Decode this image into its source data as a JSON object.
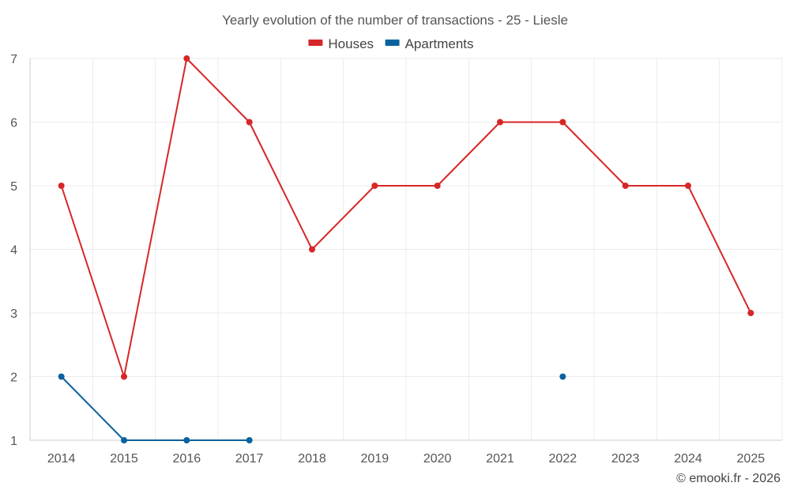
{
  "chart_data": {
    "type": "line",
    "title": "Yearly evolution of the number of transactions - 25 - Liesle",
    "categories": [
      "2014",
      "2015",
      "2016",
      "2017",
      "2018",
      "2019",
      "2020",
      "2021",
      "2022",
      "2023",
      "2024",
      "2025"
    ],
    "series": [
      {
        "name": "Houses",
        "color": "#d62728",
        "values": [
          5,
          2,
          7,
          6,
          4,
          5,
          5,
          6,
          6,
          5,
          5,
          3
        ]
      },
      {
        "name": "Apartments",
        "color": "#0a629e",
        "values": [
          2,
          1,
          1,
          1,
          null,
          null,
          null,
          null,
          2,
          null,
          null,
          null
        ]
      }
    ],
    "yticks": [
      1,
      2,
      3,
      4,
      5,
      6,
      7
    ],
    "ylim": [
      1,
      7
    ],
    "xlabel": "",
    "ylabel": "",
    "grid": true,
    "legend_position": "top-center"
  },
  "credit": "© emooki.fr - 2026"
}
